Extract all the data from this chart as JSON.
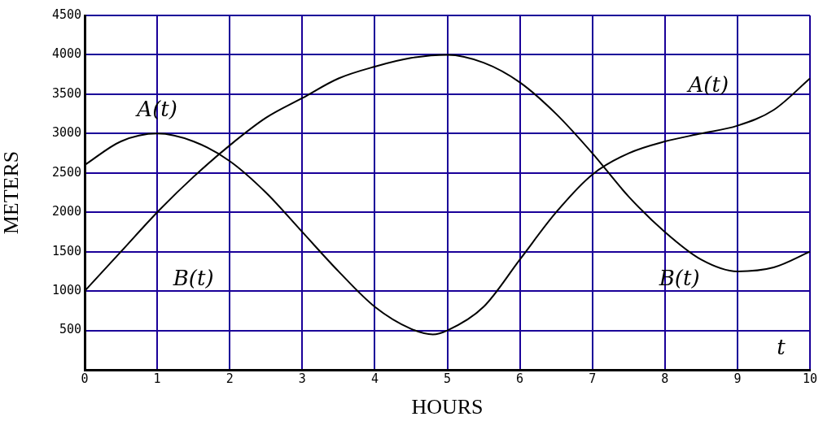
{
  "chart_data": {
    "type": "line",
    "xlabel": "HOURS",
    "ylabel": "METERS",
    "xlim": [
      0,
      10
    ],
    "xticks": [
      0,
      1,
      2,
      3,
      4,
      5,
      6,
      7,
      8,
      9,
      10
    ],
    "ylim": [
      0,
      4500
    ],
    "yticks": [
      500,
      1000,
      1500,
      2000,
      2500,
      3000,
      3500,
      4000,
      4500
    ],
    "grid": true,
    "legend": false,
    "marker": "none",
    "line_style": "solid",
    "x": [
      0,
      0.5,
      1,
      1.5,
      2,
      2.5,
      3,
      3.5,
      4,
      4.5,
      4.8,
      5,
      5.5,
      6,
      6.5,
      7,
      7.5,
      8,
      8.5,
      9,
      9.5,
      10
    ],
    "series": [
      {
        "name": "A(t)",
        "color": "#000000",
        "values": [
          2600,
          2900,
          3000,
          2900,
          2650,
          2250,
          1750,
          1250,
          800,
          520,
          450,
          500,
          800,
          1400,
          2000,
          2480,
          2750,
          2900,
          3000,
          3100,
          3300,
          3700
        ]
      },
      {
        "name": "B(t)",
        "color": "#000000",
        "x": [
          0,
          0.5,
          1,
          1.5,
          2,
          2.5,
          3,
          3.5,
          4,
          4.5,
          5,
          5.5,
          6,
          6.5,
          7,
          7.5,
          8,
          8.5,
          9,
          9.5,
          10
        ],
        "values": [
          1000,
          1500,
          2000,
          2450,
          2850,
          3200,
          3450,
          3700,
          3850,
          3960,
          4000,
          3900,
          3650,
          3250,
          2750,
          2200,
          1750,
          1400,
          1250,
          1300,
          1500
        ]
      }
    ],
    "annotations": [
      "t"
    ]
  }
}
